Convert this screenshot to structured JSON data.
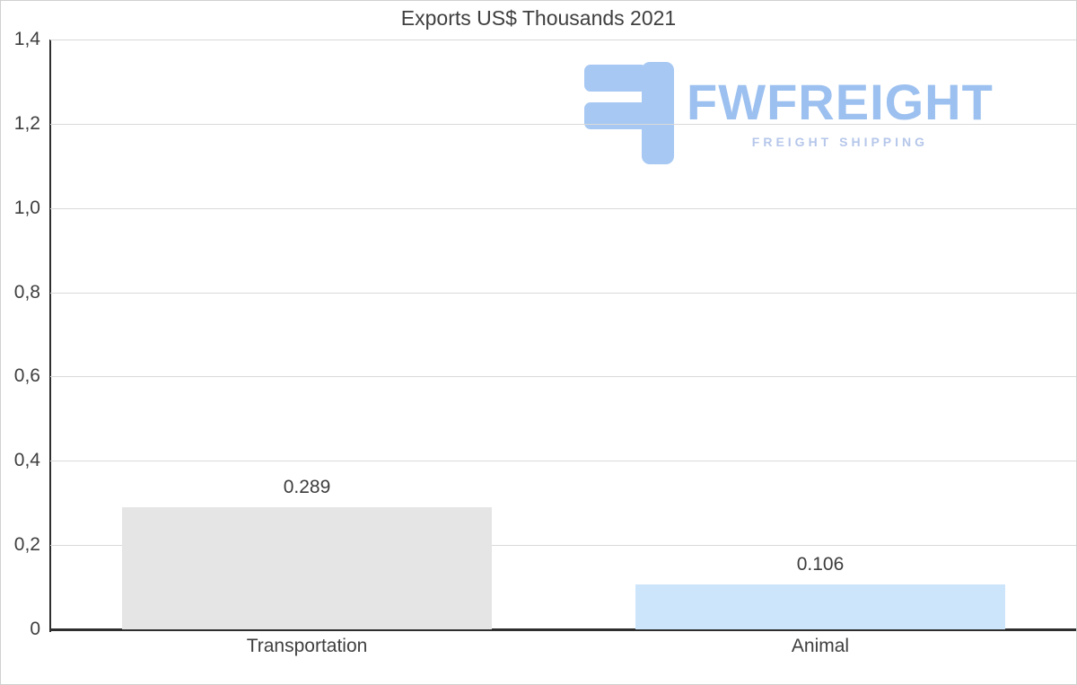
{
  "chart_data": {
    "type": "bar",
    "title": "Exports US$ Thousands 2021",
    "categories": [
      "Transportation",
      "Animal"
    ],
    "values": [
      0.289,
      0.106
    ],
    "value_labels": [
      "0.289",
      "0.106"
    ],
    "bar_colors": [
      "#e5e5e5",
      "#cde5fb"
    ],
    "ylim": [
      0,
      1.4
    ],
    "ytick_step": 0.2,
    "ytick_labels": [
      "0",
      "0,2",
      "0,4",
      "0,6",
      "0,8",
      "1,0",
      "1,2",
      "1,4"
    ],
    "xlabel": "",
    "ylabel": "",
    "grid": true,
    "legend": "none"
  },
  "watermark": {
    "brand": "FWFREIGHT",
    "tagline": "FREIGHT SHIPPING",
    "brand_color": "#9cc0ef",
    "tagline_color": "#b6c7ea",
    "icon_color": "#a6c8f3"
  },
  "colors": {
    "grid": "#d9d9d9",
    "axis": "#2e2e2e",
    "text": "#3f3f3f",
    "background": "#ffffff"
  }
}
